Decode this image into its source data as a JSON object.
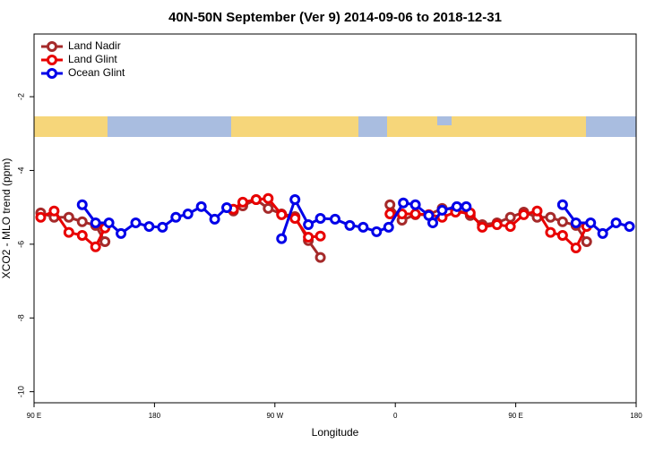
{
  "chart_data": {
    "type": "line",
    "title": "40N-50N September (Ver 9)   2014-09-06 to 2018-12-31",
    "x_label": "Longitude",
    "y_label": "XCO2 - MLO trend (ppm)",
    "xlim": [
      90,
      540
    ],
    "ylim": [
      -10.3,
      -0.3
    ],
    "xticks": [
      {
        "value": 90,
        "label": "90 E"
      },
      180,
      {
        "value": 270,
        "label": "90 W"
      },
      {
        "value": 360,
        "label": "0"
      },
      {
        "value": 450,
        "label": "90 E"
      },
      {
        "value": 540,
        "label": "180"
      }
    ],
    "yticks": [
      -2,
      -4,
      -6,
      -8,
      -10
    ],
    "legend": "topleft",
    "series": [
      {
        "name": "Land Nadir",
        "color": "#a52a2a",
        "x": [
          95,
          105,
          116,
          126,
          136,
          143,
          239,
          246,
          256,
          265,
          275,
          285,
          295,
          304,
          356,
          365,
          375,
          385,
          395,
          405,
          416,
          425,
          436,
          446,
          456,
          466,
          476,
          485,
          495,
          503
        ],
        "values": [
          -5.15,
          -5.27,
          -5.27,
          -5.39,
          -5.49,
          -5.93,
          -5.1,
          -4.96,
          -4.79,
          -5.03,
          -5.18,
          -5.25,
          -5.9,
          -6.36,
          -4.93,
          -5.35,
          -5.2,
          -5.2,
          -5.03,
          -5.05,
          -5.22,
          -5.47,
          -5.42,
          -5.27,
          -5.13,
          -5.27,
          -5.27,
          -5.39,
          -5.49,
          -5.93
        ]
      },
      {
        "name": "Land Glint",
        "color": "#e80000",
        "x": [
          95,
          105,
          116,
          126,
          136,
          143,
          239,
          246,
          256,
          265,
          275,
          285,
          295,
          304,
          356,
          365,
          375,
          385,
          395,
          405,
          416,
          425,
          436,
          446,
          456,
          466,
          476,
          485,
          495,
          503
        ],
        "values": [
          -5.27,
          -5.1,
          -5.68,
          -5.76,
          -6.07,
          -5.56,
          -5.05,
          -4.86,
          -4.79,
          -4.76,
          -5.2,
          -5.3,
          -5.81,
          -5.78,
          -5.18,
          -5.18,
          -5.18,
          -5.2,
          -5.27,
          -5.13,
          -5.15,
          -5.54,
          -5.47,
          -5.52,
          -5.2,
          -5.1,
          -5.68,
          -5.76,
          -6.1,
          -5.52
        ]
      },
      {
        "name": "Ocean Glint",
        "color": "#0000e8",
        "x": [
          126,
          136,
          146,
          155,
          166,
          176,
          186,
          196,
          205,
          215,
          225,
          234,
          275,
          285,
          295,
          304,
          315,
          326,
          336,
          346,
          355,
          366,
          375,
          385,
          388,
          395,
          406,
          413,
          485,
          495,
          506,
          515,
          525,
          535
        ],
        "values": [
          -4.93,
          -5.42,
          -5.42,
          -5.71,
          -5.42,
          -5.52,
          -5.54,
          -5.27,
          -5.18,
          -4.98,
          -5.32,
          -5.01,
          -5.85,
          -4.79,
          -5.47,
          -5.3,
          -5.32,
          -5.49,
          -5.54,
          -5.66,
          -5.54,
          -4.88,
          -4.93,
          -5.22,
          -5.42,
          -5.08,
          -4.98,
          -4.98,
          -4.93,
          -5.42,
          -5.42,
          -5.71,
          -5.42,
          -5.52
        ]
      }
    ]
  }
}
